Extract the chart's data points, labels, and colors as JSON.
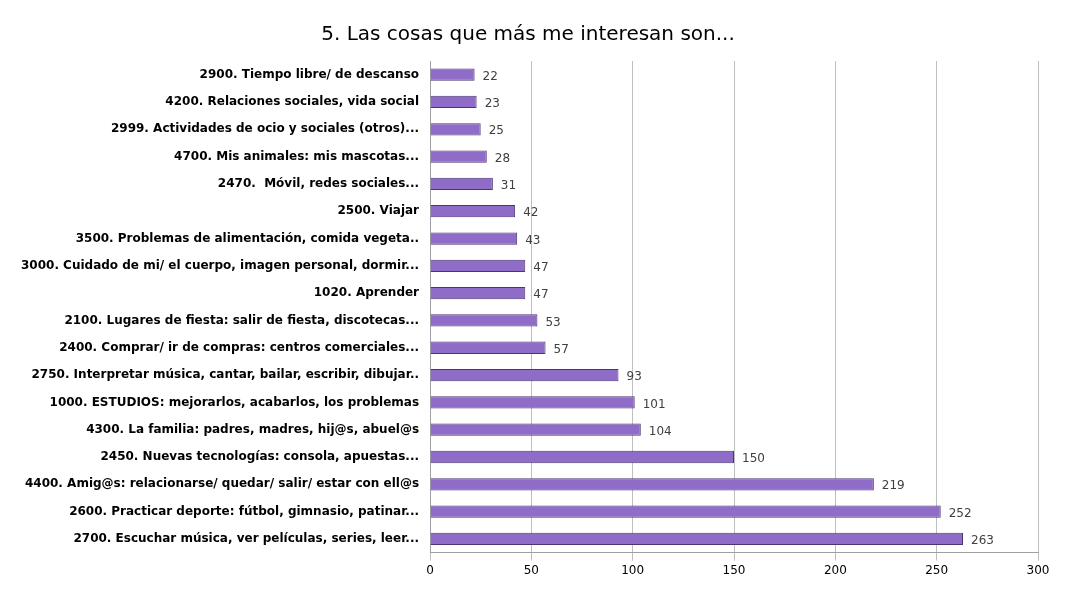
{
  "chart_data": {
    "type": "bar",
    "orientation": "horizontal",
    "title": "5. Las cosas que más me interesan son...",
    "categories": [
      "2900. Tiempo libre/ de descanso",
      "4200. Relaciones sociales, vida social",
      "2999. Actividades de ocio y sociales (otros)...",
      "4700. Mis animales: mis mascotas...",
      "2470.  Móvil, redes sociales...",
      "2500. Viajar",
      "3500. Problemas de alimentación, comida vegeta..",
      "3000. Cuidado de mi/ el cuerpo, imagen personal, dormir...",
      "1020. Aprender",
      "2100. Lugares de fiesta: salir de fiesta, discotecas...",
      "2400. Comprar/ ir de compras: centros comerciales...",
      "2750. Interpretar música, cantar, bailar, escribir, dibujar..",
      "1000. ESTUDIOS: mejorarlos, acabarlos, los problemas",
      "4300. La familia: padres, madres, hij@s, abuel@s",
      "2450. Nuevas tecnologías: consola, apuestas...",
      "4400. Amig@s: relacionarse/ quedar/ salir/ estar con ell@s",
      "2600. Practicar deporte: fútbol, gimnasio, patinar...",
      "2700. Escuchar música, ver películas, series, leer..."
    ],
    "values": [
      22,
      23,
      25,
      28,
      31,
      42,
      43,
      47,
      47,
      53,
      57,
      93,
      101,
      104,
      150,
      219,
      252,
      263
    ],
    "color": "#8f6cc8",
    "xlim": [
      0,
      300
    ],
    "xticks": [
      0,
      50,
      100,
      150,
      200,
      250,
      300
    ],
    "grid": "x",
    "data_labels": true
  }
}
